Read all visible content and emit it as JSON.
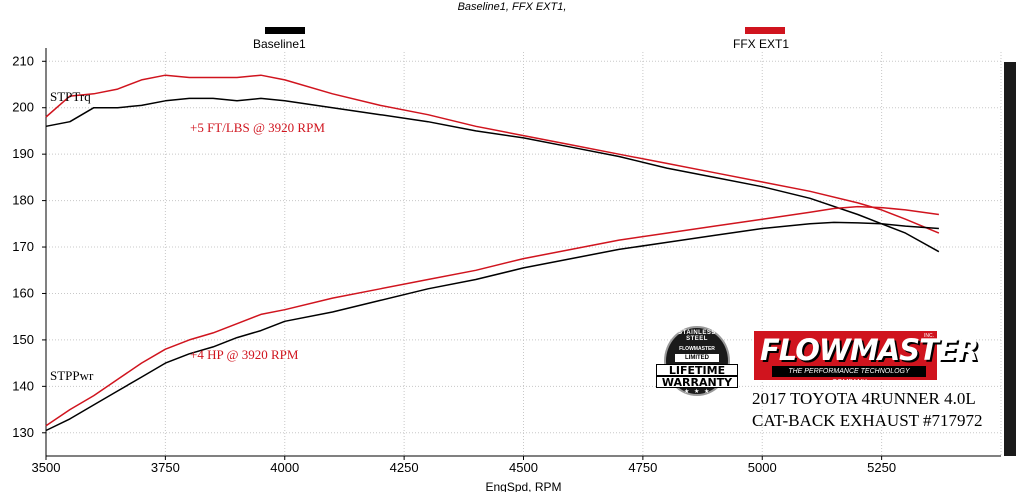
{
  "chart_data": {
    "type": "line",
    "title": "Baseline1, FFX EXT1,",
    "xlabel": "EngSpd, RPM",
    "ylabel": "",
    "xlim": [
      3500,
      5500
    ],
    "ylim": [
      125,
      212
    ],
    "xticks": [
      3500,
      3750,
      4000,
      4250,
      4500,
      4750,
      5000,
      5250
    ],
    "yticks": [
      130,
      140,
      150,
      160,
      170,
      180,
      190,
      200,
      210
    ],
    "grid": true,
    "legend": "top",
    "legend_entries": [
      {
        "name": "Baseline1",
        "color": "#000000"
      },
      {
        "name": "FFX EXT1",
        "color": "#d0141e"
      }
    ],
    "series": [
      {
        "name": "Baseline1",
        "label": "STPTrq",
        "color": "#000000",
        "x": [
          3500,
          3550,
          3600,
          3650,
          3700,
          3750,
          3800,
          3850,
          3900,
          3950,
          4000,
          4100,
          4200,
          4300,
          4400,
          4500,
          4600,
          4700,
          4800,
          4900,
          5000,
          5100,
          5200,
          5250,
          5300,
          5370
        ],
        "values": [
          196,
          197,
          200,
          200,
          200.5,
          201.5,
          202,
          202,
          201.5,
          202,
          201.5,
          200,
          198.5,
          197,
          195,
          193.5,
          191.5,
          189.5,
          187,
          185,
          183,
          180.5,
          177,
          175,
          173,
          169
        ]
      },
      {
        "name": "FFX EXT1",
        "label": "STPTrq",
        "color": "#d0141e",
        "x": [
          3500,
          3550,
          3600,
          3650,
          3700,
          3750,
          3800,
          3850,
          3900,
          3950,
          4000,
          4100,
          4200,
          4300,
          4400,
          4500,
          4600,
          4700,
          4800,
          4900,
          5000,
          5100,
          5200,
          5250,
          5300,
          5370
        ],
        "values": [
          198,
          202.5,
          203,
          204,
          206,
          207,
          206.5,
          206.5,
          206.5,
          207,
          206,
          203,
          200.5,
          198.5,
          196,
          194,
          192,
          190,
          188,
          186,
          184,
          182,
          179.5,
          178,
          176,
          173
        ]
      },
      {
        "name": "Baseline1",
        "label": "STPPwr",
        "color": "#000000",
        "x": [
          3500,
          3550,
          3600,
          3650,
          3700,
          3750,
          3800,
          3850,
          3900,
          3950,
          4000,
          4100,
          4200,
          4300,
          4400,
          4500,
          4600,
          4700,
          4800,
          4900,
          5000,
          5100,
          5150,
          5200,
          5250,
          5300,
          5370
        ],
        "values": [
          130.5,
          133,
          136,
          139,
          142,
          145,
          147,
          148.5,
          150.5,
          152,
          154,
          156,
          158.5,
          161,
          163,
          165.5,
          167.5,
          169.5,
          171,
          172.5,
          174,
          175,
          175.3,
          175.2,
          175,
          174.5,
          174
        ]
      },
      {
        "name": "FFX EXT1",
        "label": "STPPwr",
        "color": "#d0141e",
        "x": [
          3500,
          3550,
          3600,
          3650,
          3700,
          3750,
          3800,
          3850,
          3900,
          3950,
          4000,
          4100,
          4200,
          4300,
          4400,
          4500,
          4600,
          4700,
          4800,
          4900,
          5000,
          5100,
          5150,
          5200,
          5250,
          5300,
          5370
        ],
        "values": [
          131.5,
          135,
          138,
          141.5,
          145,
          148,
          150,
          151.5,
          153.5,
          155.5,
          156.5,
          159,
          161,
          163,
          165,
          167.5,
          169.5,
          171.5,
          173,
          174.5,
          176,
          177.5,
          178.3,
          178.7,
          178.5,
          178,
          177
        ]
      }
    ],
    "annotations": [
      {
        "text": "STPTrq",
        "x": 3505,
        "y": 202
      },
      {
        "text": "STPPwr",
        "x": 3505,
        "y": 136
      },
      {
        "text": "+5 FT/LBS @ 3920 RPM",
        "x": 3665,
        "y": 194.5
      },
      {
        "text": "+4 HP @ 3920 RPM",
        "x": 3665,
        "y": 143.5
      }
    ]
  },
  "info": {
    "line1": "2017 TOYOTA 4RUNNER 4.0L",
    "line2": "CAT-BACK EXHAUST #717972"
  },
  "logo": {
    "brand": "FLOWMASTER",
    "tagline": "THE PERFORMANCE TECHNOLOGY COMPANY",
    "inc": "INC."
  },
  "badge": {
    "arc": "STAINLESS STEEL",
    "brand_small": "FLOWMASTER",
    "limited": "LIMITED",
    "line1": "LIFETIME",
    "line2": "WARRANTY"
  }
}
